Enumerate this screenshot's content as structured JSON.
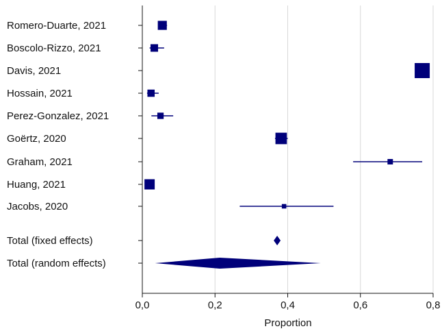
{
  "chart_data": {
    "type": "forest",
    "xlabel": "Proportion",
    "xlim": [
      0.0,
      0.8
    ],
    "x_ticks": [
      "0,0",
      "0,2",
      "0,4",
      "0,6",
      "0,8"
    ],
    "x_tick_values": [
      0.0,
      0.2,
      0.4,
      0.6,
      0.8
    ],
    "vertical_gridlines": true,
    "studies": [
      {
        "label": "Romero-Duarte, 2021",
        "estimate": 0.055,
        "ci": [
          0.045,
          0.068
        ],
        "weight": 3
      },
      {
        "label": "Boscolo-Rizzo, 2021",
        "estimate": 0.033,
        "ci": [
          0.02,
          0.06
        ],
        "weight": 2.5
      },
      {
        "label": "Davis, 2021",
        "estimate": 0.77,
        "ci": [
          0.76,
          0.78
        ],
        "weight": 5
      },
      {
        "label": "Hossain, 2021",
        "estimate": 0.024,
        "ci": [
          0.013,
          0.045
        ],
        "weight": 2.4
      },
      {
        "label": "Perez-Gonzalez, 2021",
        "estimate": 0.05,
        "ci": [
          0.025,
          0.085
        ],
        "weight": 2.1
      },
      {
        "label": "Goërtz, 2020",
        "estimate": 0.382,
        "ci": [
          0.365,
          0.4
        ],
        "weight": 3.8
      },
      {
        "label": "Graham, 2021",
        "estimate": 0.682,
        "ci": [
          0.58,
          0.77
        ],
        "weight": 1.8
      },
      {
        "label": "Huang, 2021",
        "estimate": 0.02,
        "ci": [
          0.012,
          0.032
        ],
        "weight": 3.4
      },
      {
        "label": "Jacobs, 2020",
        "estimate": 0.39,
        "ci": [
          0.268,
          0.526
        ],
        "weight": 1.5
      }
    ],
    "pooled": [
      {
        "label": "Total (fixed effects)",
        "estimate": 0.371,
        "ci": [
          0.361,
          0.381
        ]
      },
      {
        "label": "Total (random effects)",
        "estimate": 0.213,
        "ci": [
          0.035,
          0.491
        ]
      }
    ],
    "colors": {
      "marker": "#00007a",
      "grid": "#d8d8d8",
      "axis": "#111111"
    }
  }
}
